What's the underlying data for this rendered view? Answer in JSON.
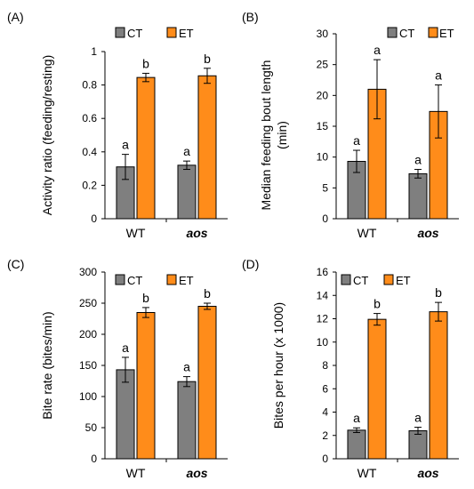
{
  "colors": {
    "CT": "#7f7f7f",
    "ET": "#ff8c1a",
    "axis": "#000000"
  },
  "chart_data": [
    {
      "panel_label": "(A)",
      "type": "bar",
      "ylabel": "Activity ratio (feeding/resting)",
      "ylim": [
        0,
        1
      ],
      "yticks": [
        "0",
        "0.2",
        "0.4",
        "0.6",
        "0.8",
        "1"
      ],
      "categories": [
        "WT",
        "aos"
      ],
      "series": [
        {
          "name": "CT",
          "values": [
            0.31,
            0.32
          ],
          "errors": [
            0.075,
            0.025
          ],
          "letters": [
            "a",
            "a"
          ]
        },
        {
          "name": "ET",
          "values": [
            0.845,
            0.855
          ],
          "errors": [
            0.025,
            0.045
          ],
          "letters": [
            "b",
            "b"
          ]
        }
      ],
      "legend": "top-left"
    },
    {
      "panel_label": "(B)",
      "type": "bar",
      "ylabel": "Median feeding bout length (min)",
      "ylabel_lines": [
        "Median feeding bout length",
        "(min)"
      ],
      "ylim": [
        0,
        30
      ],
      "yticks": [
        "0",
        "5",
        "10",
        "15",
        "20",
        "25",
        "30"
      ],
      "categories": [
        "WT",
        "aos"
      ],
      "series": [
        {
          "name": "CT",
          "values": [
            9.3,
            7.3
          ],
          "errors": [
            1.8,
            0.7
          ],
          "letters": [
            "a",
            "a"
          ]
        },
        {
          "name": "ET",
          "values": [
            21.0,
            17.4
          ],
          "errors": [
            4.8,
            4.3
          ],
          "letters": [
            "a",
            "a"
          ]
        }
      ],
      "legend": "top-right"
    },
    {
      "panel_label": "(C)",
      "type": "bar",
      "ylabel": "Bite rate (bites/min)",
      "ylim": [
        0,
        300
      ],
      "yticks": [
        "0",
        "50",
        "100",
        "150",
        "200",
        "250",
        "300"
      ],
      "categories": [
        "WT",
        "aos"
      ],
      "series": [
        {
          "name": "CT",
          "values": [
            143,
            124
          ],
          "errors": [
            20,
            8
          ],
          "letters": [
            "a",
            "a"
          ]
        },
        {
          "name": "ET",
          "values": [
            235,
            245
          ],
          "errors": [
            8,
            5
          ],
          "letters": [
            "b",
            "b"
          ]
        }
      ],
      "legend": "top-left"
    },
    {
      "panel_label": "(D)",
      "type": "bar",
      "ylabel": "Bites per hour (x 1000)",
      "ylim": [
        0,
        16
      ],
      "yticks": [
        "0",
        "2",
        "4",
        "6",
        "8",
        "10",
        "12",
        "14",
        "16"
      ],
      "categories": [
        "WT",
        "aos"
      ],
      "series": [
        {
          "name": "CT",
          "values": [
            2.45,
            2.4
          ],
          "errors": [
            0.2,
            0.3
          ],
          "letters": [
            "a",
            "a"
          ]
        },
        {
          "name": "ET",
          "values": [
            11.95,
            12.6
          ],
          "errors": [
            0.5,
            0.8
          ],
          "letters": [
            "b",
            "b"
          ]
        }
      ],
      "legend": "top-left"
    }
  ]
}
